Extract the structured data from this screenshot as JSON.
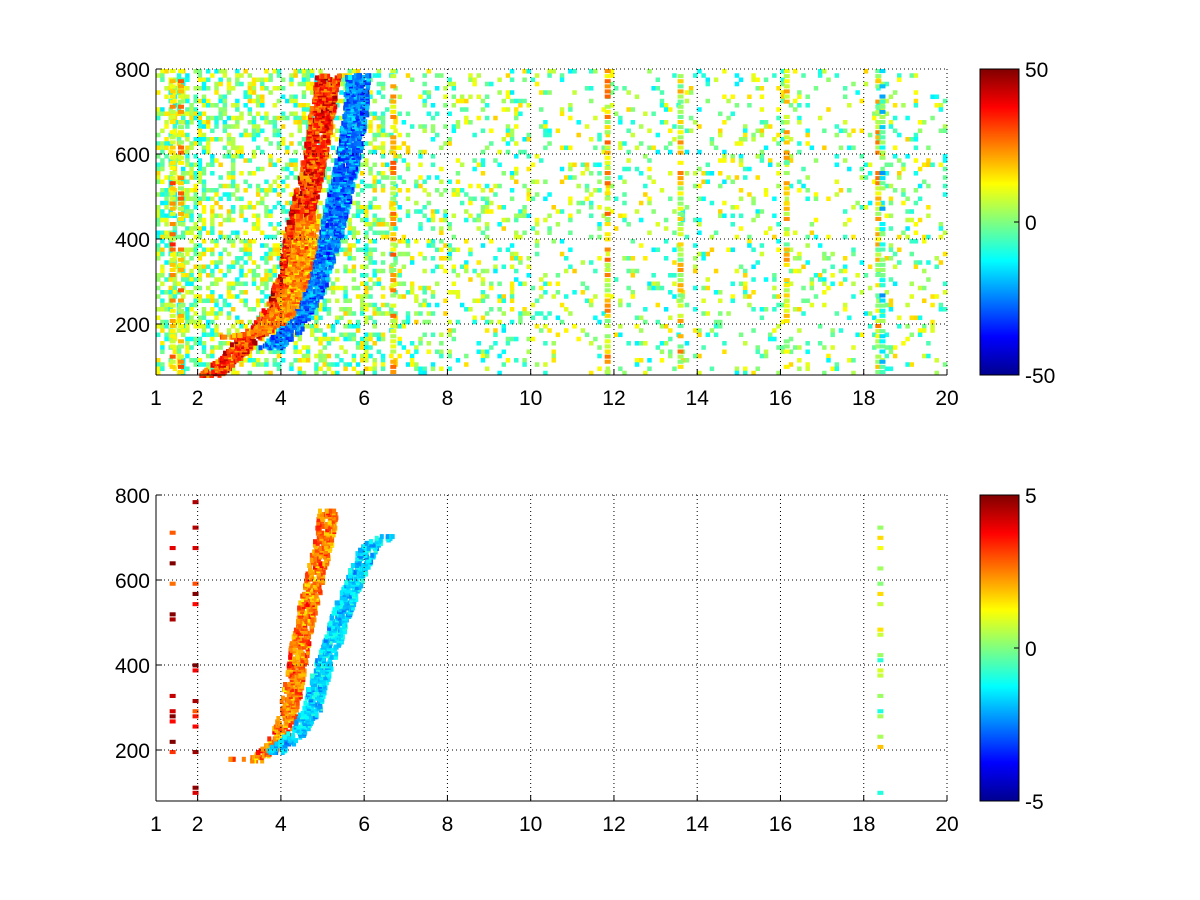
{
  "chart_data": [
    {
      "type": "heatmap",
      "title": "",
      "xlabel": "",
      "ylabel": "",
      "xlim": [
        1,
        20
      ],
      "ylim": [
        80,
        800
      ],
      "x_ticks": [
        1,
        2,
        4,
        6,
        8,
        10,
        12,
        14,
        16,
        18,
        20
      ],
      "x_tick_labels": [
        "1",
        "2",
        "4",
        "6",
        "8",
        "10",
        "12",
        "14",
        "16",
        "18",
        "20"
      ],
      "y_ticks": [
        200,
        400,
        600,
        800
      ],
      "y_tick_labels": [
        "200",
        "400",
        "600",
        "800"
      ],
      "grid": true,
      "colormap": "jet",
      "clim": [
        -50,
        50
      ],
      "colorbar_ticks": [
        -50,
        0,
        50
      ],
      "colorbar_tick_labels": [
        "-50",
        "0",
        "50"
      ],
      "features": [
        {
          "kind": "curve",
          "points": [
            [
              2.3,
              85
            ],
            [
              2.8,
              130
            ],
            [
              3.2,
              175
            ],
            [
              3.6,
              205
            ],
            [
              3.95,
              260
            ],
            [
              4.2,
              330
            ],
            [
              4.35,
              420
            ],
            [
              4.55,
              500
            ],
            [
              4.7,
              560
            ],
            [
              4.85,
              640
            ],
            [
              5.0,
              730
            ],
            [
              5.1,
              790
            ]
          ],
          "value": 40
        },
        {
          "kind": "curve",
          "points": [
            [
              3.7,
              150
            ],
            [
              4.2,
              190
            ],
            [
              4.5,
              240
            ],
            [
              4.8,
              300
            ],
            [
              5.0,
              370
            ],
            [
              5.2,
              430
            ],
            [
              5.4,
              520
            ],
            [
              5.6,
              610
            ],
            [
              5.75,
              700
            ],
            [
              5.8,
              790
            ]
          ],
          "value": -30
        },
        {
          "kind": "curve",
          "points": [
            [
              2.8,
              175
            ],
            [
              3.5,
              185
            ],
            [
              4.0,
              230
            ],
            [
              4.3,
              300
            ],
            [
              4.5,
              380
            ],
            [
              4.6,
              460
            ]
          ],
          "value": 28
        },
        {
          "kind": "column",
          "x": 18.35,
          "value": 12
        },
        {
          "kind": "column",
          "x": 18.45,
          "value": -10
        },
        {
          "kind": "column",
          "x": 11.85,
          "value": 14
        },
        {
          "kind": "column",
          "x": 16.15,
          "value": 10
        },
        {
          "kind": "column",
          "x": 6.7,
          "value": 15
        },
        {
          "kind": "column",
          "x": 1.4,
          "value": 20
        },
        {
          "kind": "column",
          "x": 1.6,
          "value": 16
        },
        {
          "kind": "column",
          "x": 13.6,
          "value": 11
        }
      ]
    },
    {
      "type": "heatmap",
      "title": "",
      "xlabel": "",
      "ylabel": "",
      "xlim": [
        1,
        20
      ],
      "ylim": [
        80,
        800
      ],
      "x_ticks": [
        1,
        2,
        4,
        6,
        8,
        10,
        12,
        14,
        16,
        18,
        20
      ],
      "x_tick_labels": [
        "1",
        "2",
        "4",
        "6",
        "8",
        "10",
        "12",
        "14",
        "16",
        "18",
        "20"
      ],
      "y_ticks": [
        200,
        400,
        600,
        800
      ],
      "y_tick_labels": [
        "200",
        "400",
        "600",
        "800"
      ],
      "grid": true,
      "colormap": "jet",
      "clim": [
        -5,
        5
      ],
      "colorbar_ticks": [
        -5,
        0,
        5
      ],
      "colorbar_tick_labels": [
        "-5",
        "0",
        "5"
      ],
      "features": [
        {
          "kind": "curve",
          "points": [
            [
              2.8,
              185
            ],
            [
              3.3,
              180
            ],
            [
              3.6,
              200
            ],
            [
              3.95,
              240
            ],
            [
              4.15,
              300
            ],
            [
              4.3,
              380
            ],
            [
              4.45,
              470
            ],
            [
              4.6,
              540
            ],
            [
              4.8,
              620
            ],
            [
              5.0,
              700
            ],
            [
              5.1,
              770
            ]
          ],
          "value": 3
        },
        {
          "kind": "curve",
          "points": [
            [
              3.8,
              200
            ],
            [
              4.3,
              240
            ],
            [
              4.7,
              300
            ],
            [
              4.9,
              380
            ],
            [
              5.2,
              460
            ],
            [
              5.5,
              550
            ],
            [
              5.8,
              620
            ],
            [
              6.1,
              690
            ],
            [
              6.6,
              710
            ]
          ],
          "value": -2
        },
        {
          "kind": "column",
          "x": 1.4,
          "value": 4
        },
        {
          "kind": "column",
          "x": 1.95,
          "value": 4
        },
        {
          "kind": "column",
          "x": 18.4,
          "value": 0.5
        }
      ]
    }
  ]
}
